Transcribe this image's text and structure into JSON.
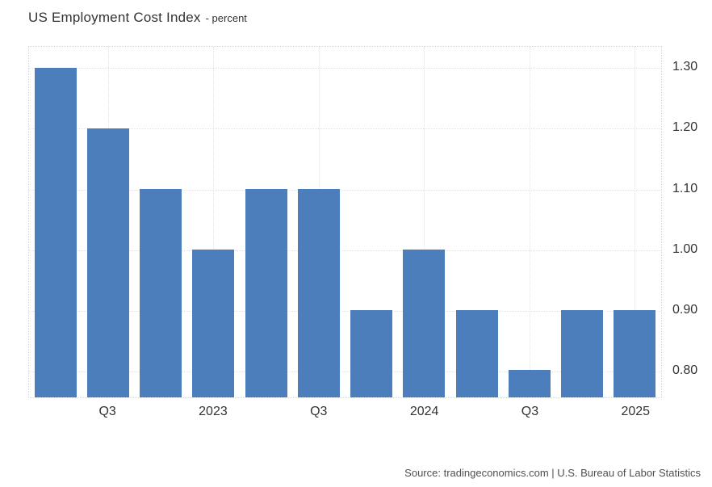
{
  "header": {
    "title": "US Employment Cost Index",
    "subtitle": "- percent"
  },
  "footer": {
    "source": "Source: tradingeconomics.com | U.S. Bureau of Labor Statistics"
  },
  "chart_data": {
    "type": "bar",
    "title": "US Employment Cost Index",
    "subtitle": "percent",
    "categories": [
      "",
      "Q3",
      "",
      "2023",
      "",
      "Q3",
      "",
      "2024",
      "",
      "Q3",
      "",
      "2025"
    ],
    "values": [
      1.3,
      1.2,
      1.1,
      1.0,
      1.1,
      1.1,
      0.9,
      1.0,
      0.9,
      0.8,
      0.9,
      0.9
    ],
    "xlabel": "",
    "ylabel": "",
    "ylim": [
      0.755,
      1.335
    ],
    "yticks": [
      0.8,
      0.9,
      1.0,
      1.1,
      1.2,
      1.3
    ],
    "ytick_labels": [
      "0.80",
      "0.90",
      "1.00",
      "1.10",
      "1.20",
      "1.30"
    ],
    "yaxis_side": "right",
    "grid": true,
    "legend_position": "none",
    "bar_color": "#4d7ebc",
    "grid_color": "#e2e2e2",
    "text_color": "#333333"
  }
}
